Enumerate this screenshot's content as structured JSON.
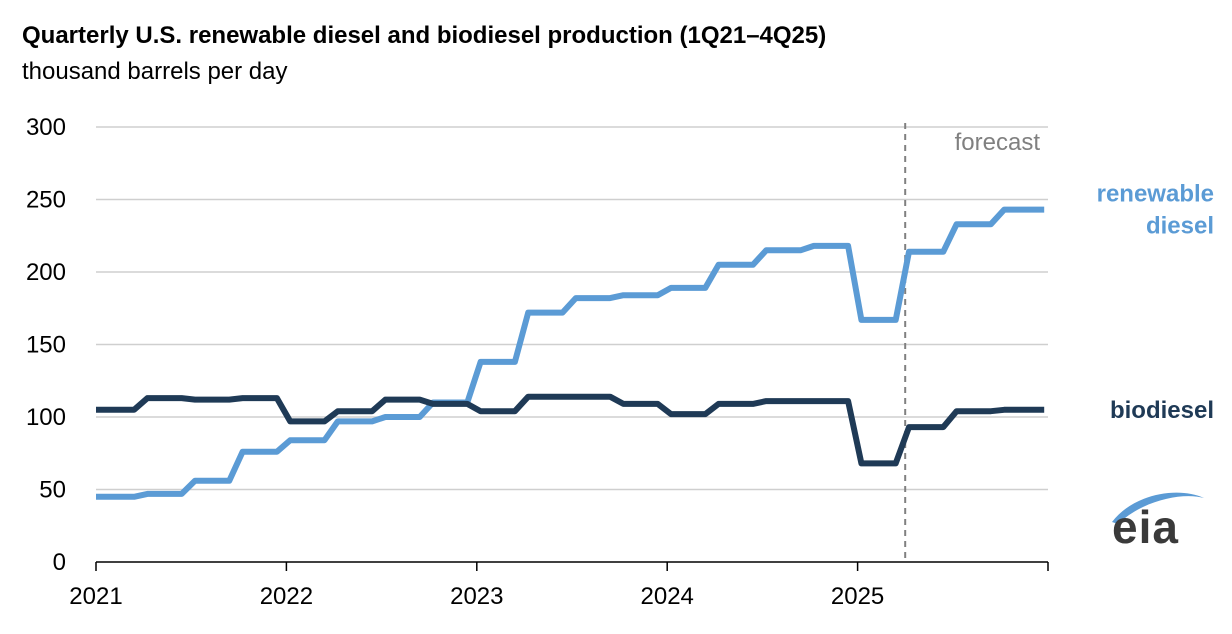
{
  "chart_data": {
    "type": "line",
    "title": "Quarterly U.S. renewable diesel and biodiesel production (1Q21–4Q25)",
    "subtitle": "thousand barrels per day",
    "xlabel": "",
    "ylabel": "thousand barrels per day",
    "ylim": [
      0,
      300
    ],
    "yticks": [
      0,
      50,
      100,
      150,
      200,
      250,
      300
    ],
    "xlim": [
      2021,
      2026
    ],
    "xticks": [
      2021,
      2022,
      2023,
      2024,
      2025
    ],
    "forecast_start": 2025.25,
    "forecast_label": "forecast",
    "grid": true,
    "series": [
      {
        "name": "renewable diesel",
        "label_lines": [
          "renewable",
          "diesel"
        ],
        "color": "#5b9bd5",
        "values": [
          45,
          47,
          56,
          76,
          84,
          97,
          100,
          110,
          138,
          172,
          182,
          184,
          189,
          205,
          215,
          218,
          167,
          214,
          233,
          243
        ],
        "step_x_start": [
          2021.0,
          2021.27,
          2021.52,
          2021.77,
          2022.02,
          2022.27,
          2022.52,
          2022.77,
          2023.02,
          2023.27,
          2023.52,
          2023.77,
          2024.02,
          2024.27,
          2024.52,
          2024.77,
          2025.02,
          2025.27,
          2025.52,
          2025.77
        ],
        "end_x": 2025.98
      },
      {
        "name": "biodiesel",
        "label_lines": [
          "biodiesel"
        ],
        "color": "#1f3a56",
        "values": [
          105,
          113,
          112,
          113,
          97,
          104,
          112,
          109,
          104,
          114,
          114,
          109,
          102,
          109,
          111,
          111,
          68,
          93,
          104,
          105
        ],
        "step_x_start": [
          2021.0,
          2021.27,
          2021.52,
          2021.77,
          2022.02,
          2022.27,
          2022.52,
          2022.77,
          2023.02,
          2023.27,
          2023.52,
          2023.77,
          2024.02,
          2024.27,
          2024.52,
          2024.77,
          2025.02,
          2025.27,
          2025.52,
          2025.77
        ],
        "end_x": 2025.98
      }
    ],
    "source": "eia"
  }
}
